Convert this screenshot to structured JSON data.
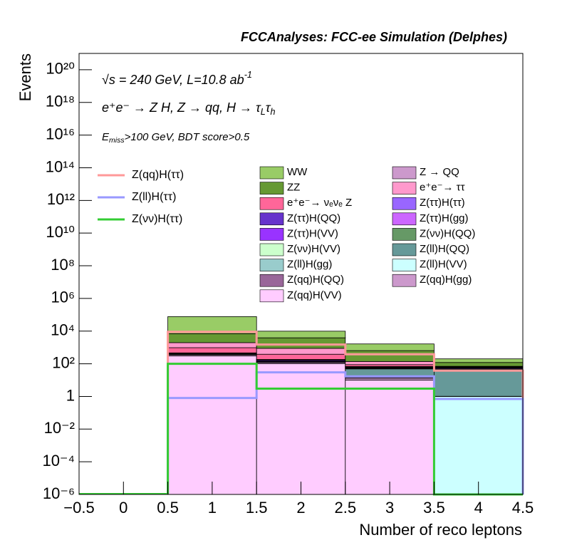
{
  "chart_data": {
    "type": "stacked_histogram",
    "title": "FCCAnalyses: FCC-ee Simulation (Delphes)",
    "annotations": [
      [
        {
          "text": "√s = 240 GeV, L=10.8 ab"
        },
        {
          "text": "-1",
          "shift": "sup"
        }
      ],
      [
        {
          "text": "e⁺e⁻ → Z H, Z → qq, H → τ"
        },
        {
          "text": "L",
          "shift": "sub"
        },
        {
          "text": "τ"
        },
        {
          "text": "h",
          "shift": "sub"
        }
      ],
      [
        {
          "text": "E"
        },
        {
          "text": "miss",
          "shift": "sub"
        },
        {
          "text": ">100 GeV, BDT score>0.5"
        }
      ]
    ],
    "x_label": "Number of reco leptons",
    "y_label": "Events",
    "log_y": true,
    "bins": [
      0.5,
      1.5,
      2.5,
      3.5,
      4.5
    ],
    "xlim": [
      -0.5,
      4.5
    ],
    "xticks": [
      {
        "value": -0.5,
        "label": "−0.5"
      },
      0,
      0.5,
      1,
      1.5,
      2,
      2.5,
      3,
      3.5,
      4,
      4.5
    ],
    "ylim": [
      1e-06,
      1e+21
    ],
    "yticks": [
      {
        "value": 1e-06,
        "label": "10⁻⁶"
      },
      {
        "value": 0.0001,
        "label": "10⁻⁴"
      },
      {
        "value": 0.01,
        "label": "10⁻²"
      },
      1,
      {
        "value": 100,
        "label": "10²"
      },
      {
        "value": 10000,
        "label": "10⁴"
      },
      {
        "value": 1000000,
        "label": "10⁶"
      },
      {
        "value": 100000000,
        "label": "10⁸"
      },
      {
        "value": 10000000000,
        "label": "10¹⁰"
      },
      {
        "value": 1000000000000,
        "label": "10¹²"
      },
      {
        "value": 100000000000000,
        "label": "10¹⁴"
      },
      {
        "value": 1e+16,
        "label": "10¹⁶"
      },
      {
        "value": 1e+18,
        "label": "10¹⁸"
      },
      {
        "value": 1e+20,
        "label": "10²⁰"
      }
    ],
    "series": [
      {
        "name": "WW",
        "color": "#99cc66",
        "values": [
          70000,
          6000,
          1000,
          80
        ]
      },
      {
        "name": "Z → QQ",
        "color": "#cc99cc",
        "values": [
          0,
          0.15,
          0,
          0
        ]
      },
      {
        "name": "ZZ",
        "color": "#669933",
        "values": [
          5000,
          3000,
          500,
          50
        ]
      },
      {
        "name": "e⁺e⁻→ ττ",
        "color": "#ff99cc",
        "values": [
          1000,
          500,
          50,
          5
        ]
      },
      {
        "name": "e⁺e⁻→ νₑνₑ Z",
        "color": "#ff6699",
        "values": [
          500,
          200,
          20,
          5
        ]
      },
      {
        "name": "Z(ττ)H(ττ)",
        "color": "#9966ff",
        "values": [
          1,
          1,
          0.5,
          3
        ]
      },
      {
        "name": "Z(ττ)H(QQ)",
        "color": "#6633cc",
        "values": [
          20,
          10,
          5,
          3
        ]
      },
      {
        "name": "Z(ττ)H(gg)",
        "color": "#cc66ff",
        "values": [
          20,
          10,
          3,
          2
        ]
      },
      {
        "name": "Z(ττ)H(VV)",
        "color": "#9933ff",
        "values": [
          30,
          20,
          5,
          5
        ]
      },
      {
        "name": "Z(νν)H(QQ)",
        "color": "#669966",
        "values": [
          4,
          2,
          3,
          5
        ]
      },
      {
        "name": "Z(νν)H(VV)",
        "color": "#ccffcc",
        "values": [
          10,
          5,
          3,
          1
        ]
      },
      {
        "name": "Z(ll)H(QQ)",
        "color": "#669999",
        "values": [
          5,
          3,
          30,
          40
        ]
      },
      {
        "name": "Z(ll)H(gg)",
        "color": "#99cccc",
        "values": [
          3,
          2,
          0.5,
          0.02
        ]
      },
      {
        "name": "Z(ll)H(VV)",
        "color": "#ccffff",
        "values": [
          10,
          5,
          3,
          1
        ]
      },
      {
        "name": "Z(qq)H(QQ)",
        "color": "#996699",
        "values": [
          10,
          5,
          2,
          0
        ]
      },
      {
        "name": "Z(qq)H(gg)",
        "color": "#cc99cc",
        "values": [
          50,
          20,
          3,
          0
        ]
      },
      {
        "name": "Z(qq)H(VV)",
        "color": "#ffccff",
        "values": [
          300,
          100,
          10,
          0
        ]
      }
    ],
    "signals": [
      {
        "name": "Z(qq)H(ττ)",
        "color": "#ff9999",
        "values": [
          9000,
          1500,
          380,
          38
        ]
      },
      {
        "name": "Z(ll)H(ττ)",
        "color": "#9999ff",
        "values": [
          0.8,
          30,
          17,
          0.7
        ]
      },
      {
        "name": "Z(νν)H(ττ)",
        "color": "#33cc33",
        "values": [
          100,
          3,
          3,
          0
        ]
      }
    ]
  }
}
